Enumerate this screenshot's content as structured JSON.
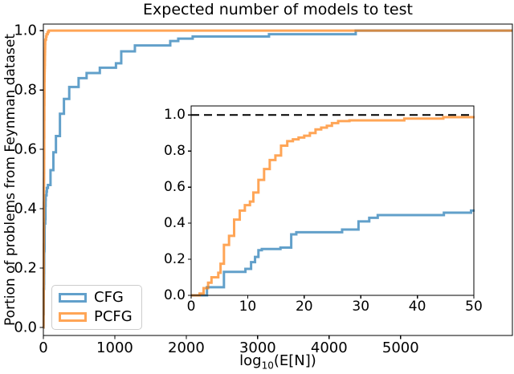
{
  "figure": {
    "title": "Expected number of models to test",
    "ylabel": "Portion of problems from Feynman dataset",
    "xlabel": {
      "prefix": "log",
      "sub": "10",
      "suffix": "(E[N])"
    }
  },
  "legend": {
    "items": [
      {
        "label": "CFG",
        "color": "#62a0cb"
      },
      {
        "label": "PCFG",
        "color": "#ffa556"
      }
    ]
  },
  "chart_data": {
    "type": "line",
    "title": "Expected number of models to test",
    "xlabel": "log10(E[N])",
    "ylabel": "Portion of problems from Feynman dataset",
    "step": "post",
    "grid": false,
    "series": [
      {
        "name": "CFG",
        "color": "#1f77b4",
        "opacity": 0.7,
        "linewidth": 3,
        "points": [
          [
            0,
            0
          ],
          [
            2.8,
            0.045
          ],
          [
            5.8,
            0.13
          ],
          [
            9.6,
            0.147
          ],
          [
            10.6,
            0.184
          ],
          [
            11.3,
            0.213
          ],
          [
            11.9,
            0.25
          ],
          [
            12.5,
            0.257
          ],
          [
            15.8,
            0.265
          ],
          [
            17.7,
            0.338
          ],
          [
            18.6,
            0.35
          ],
          [
            26.7,
            0.365
          ],
          [
            29.6,
            0.41
          ],
          [
            31.5,
            0.43
          ],
          [
            33,
            0.445
          ],
          [
            44.7,
            0.458
          ],
          [
            49.5,
            0.47
          ],
          [
            64,
            0.48
          ],
          [
            100,
            0.53
          ],
          [
            140,
            0.59
          ],
          [
            176,
            0.645
          ],
          [
            232,
            0.72
          ],
          [
            288,
            0.77
          ],
          [
            362,
            0.81
          ],
          [
            493,
            0.84
          ],
          [
            605,
            0.857
          ],
          [
            790,
            0.875
          ],
          [
            1016,
            0.89
          ],
          [
            1090,
            0.93
          ],
          [
            1281,
            0.95
          ],
          [
            1776,
            0.965
          ],
          [
            1888,
            0.973
          ],
          [
            2090,
            0.98
          ],
          [
            3158,
            0.988
          ],
          [
            4372,
            1.0
          ]
        ]
      },
      {
        "name": "PCFG",
        "color": "#ff7f0e",
        "opacity": 0.7,
        "linewidth": 3,
        "points": [
          [
            0,
            0
          ],
          [
            1.5,
            0.01
          ],
          [
            2.2,
            0.04
          ],
          [
            3,
            0.07
          ],
          [
            3.6,
            0.1
          ],
          [
            4.8,
            0.125
          ],
          [
            5.2,
            0.175
          ],
          [
            5.8,
            0.28
          ],
          [
            6.7,
            0.33
          ],
          [
            7.6,
            0.42
          ],
          [
            8.6,
            0.47
          ],
          [
            9.5,
            0.5
          ],
          [
            10.4,
            0.52
          ],
          [
            11,
            0.57
          ],
          [
            11.9,
            0.64
          ],
          [
            12.9,
            0.7
          ],
          [
            13.9,
            0.75
          ],
          [
            14.9,
            0.775
          ],
          [
            15.9,
            0.83
          ],
          [
            17,
            0.855
          ],
          [
            18,
            0.865
          ],
          [
            19,
            0.875
          ],
          [
            20,
            0.885
          ],
          [
            21,
            0.9
          ],
          [
            22,
            0.92
          ],
          [
            23,
            0.93
          ],
          [
            24,
            0.94
          ],
          [
            24.9,
            0.955
          ],
          [
            26,
            0.966
          ],
          [
            28,
            0.97
          ],
          [
            37.7,
            0.98
          ],
          [
            44.6,
            0.988
          ],
          [
            60,
            0.995
          ],
          [
            75,
            1.0
          ]
        ]
      }
    ],
    "main_axes": {
      "xlim": [
        0,
        6565
      ],
      "ylim": [
        -0.027,
        1.022
      ],
      "xticks": [
        "0",
        "1000",
        "2000",
        "3000",
        "4000",
        "5000"
      ],
      "yticks": [
        "0.0",
        "0.2",
        "0.4",
        "0.6",
        "0.8",
        "1.0"
      ],
      "legend_position": "lower left"
    },
    "inset_axes": {
      "xlim": [
        0,
        50
      ],
      "ylim": [
        0,
        1.05
      ],
      "xticks": [
        "0",
        "10",
        "20",
        "30",
        "40",
        "50"
      ],
      "yticks": [
        "0.0",
        "0.2",
        "0.4",
        "0.6",
        "0.8",
        "1.0"
      ],
      "reference_line": {
        "y": 1.0,
        "style": "dashed",
        "color": "#000000"
      }
    }
  }
}
